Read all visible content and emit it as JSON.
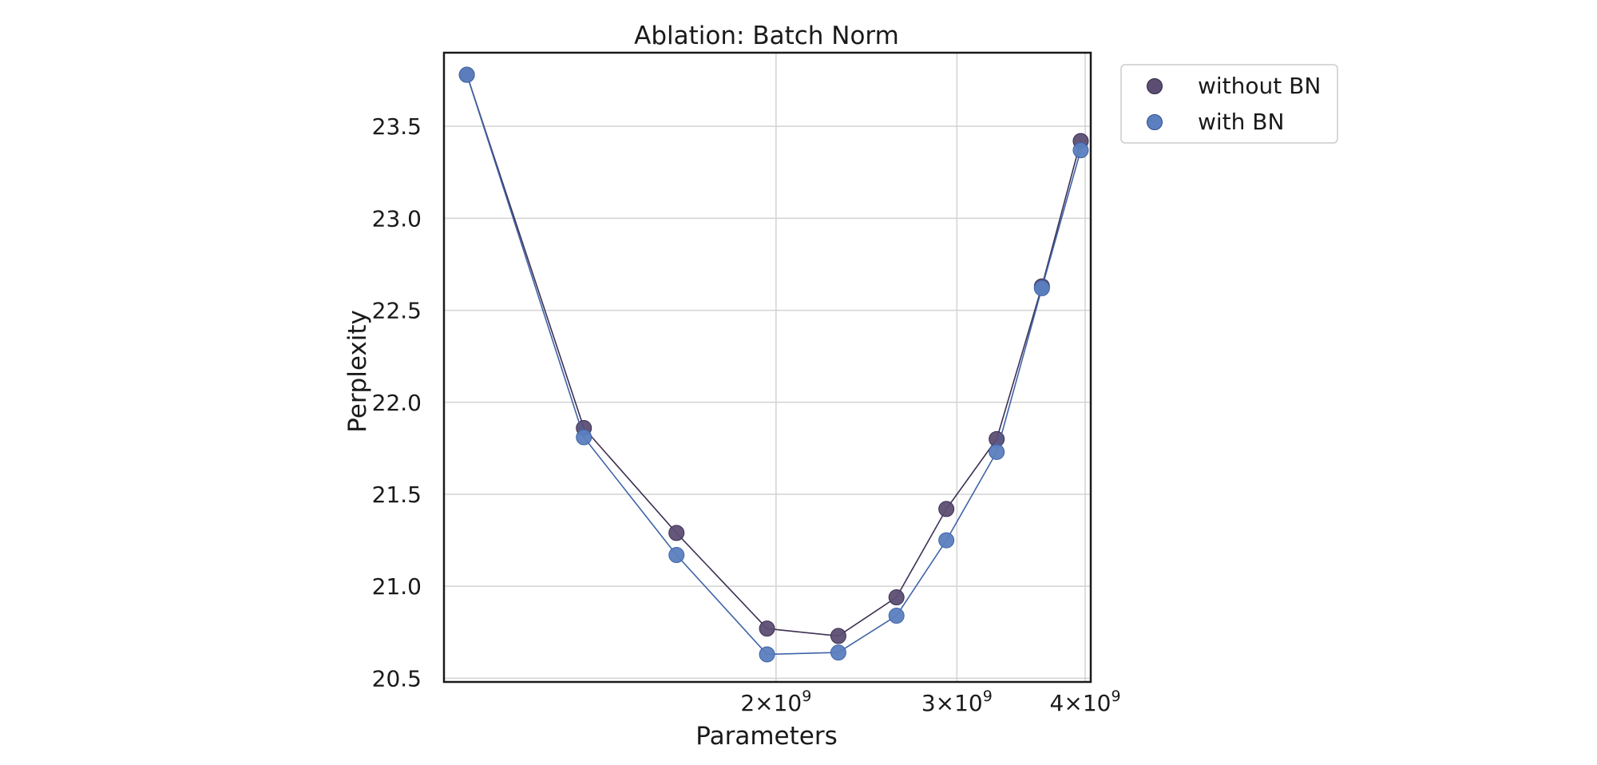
{
  "chart_data": {
    "type": "line",
    "title": "Ablation: Batch Norm",
    "xlabel": "Parameters",
    "ylabel": "Perplexity",
    "xscale": "log",
    "xlim": [
      950000000,
      4050000000
    ],
    "ylim": [
      20.48,
      23.9
    ],
    "grid": true,
    "legend_position": "outside top-right",
    "x_ticks": [
      {
        "value": 2000000000,
        "base": "2×10",
        "exp": "9"
      },
      {
        "value": 3000000000,
        "base": "3×10",
        "exp": "9"
      },
      {
        "value": 4000000000,
        "base": "4×10",
        "exp": "9"
      }
    ],
    "y_ticks": [
      {
        "value": 20.5,
        "label": "20.5"
      },
      {
        "value": 21.0,
        "label": "21.0"
      },
      {
        "value": 21.5,
        "label": "21.5"
      },
      {
        "value": 22.0,
        "label": "22.0"
      },
      {
        "value": 22.5,
        "label": "22.5"
      },
      {
        "value": 23.0,
        "label": "23.0"
      },
      {
        "value": 23.5,
        "label": "23.5"
      }
    ],
    "series": [
      {
        "name": "without BN",
        "color": "#5c4e73",
        "line_color": "#3d2f52",
        "x": [
          1000000000,
          1300000000,
          1600000000,
          1960000000,
          2300000000,
          2620000000,
          2930000000,
          3280000000,
          3630000000,
          3960000000
        ],
        "y": [
          23.78,
          21.86,
          21.29,
          20.77,
          20.73,
          20.94,
          21.42,
          21.8,
          22.63,
          23.42
        ]
      },
      {
        "name": "with BN",
        "color": "#5b7fbf",
        "line_color": "#3f63a8",
        "x": [
          1000000000,
          1300000000,
          1600000000,
          1960000000,
          2300000000,
          2620000000,
          2930000000,
          3280000000,
          3630000000,
          3960000000
        ],
        "y": [
          23.78,
          21.81,
          21.17,
          20.63,
          20.64,
          20.84,
          21.25,
          21.73,
          22.62,
          23.37
        ]
      }
    ]
  }
}
